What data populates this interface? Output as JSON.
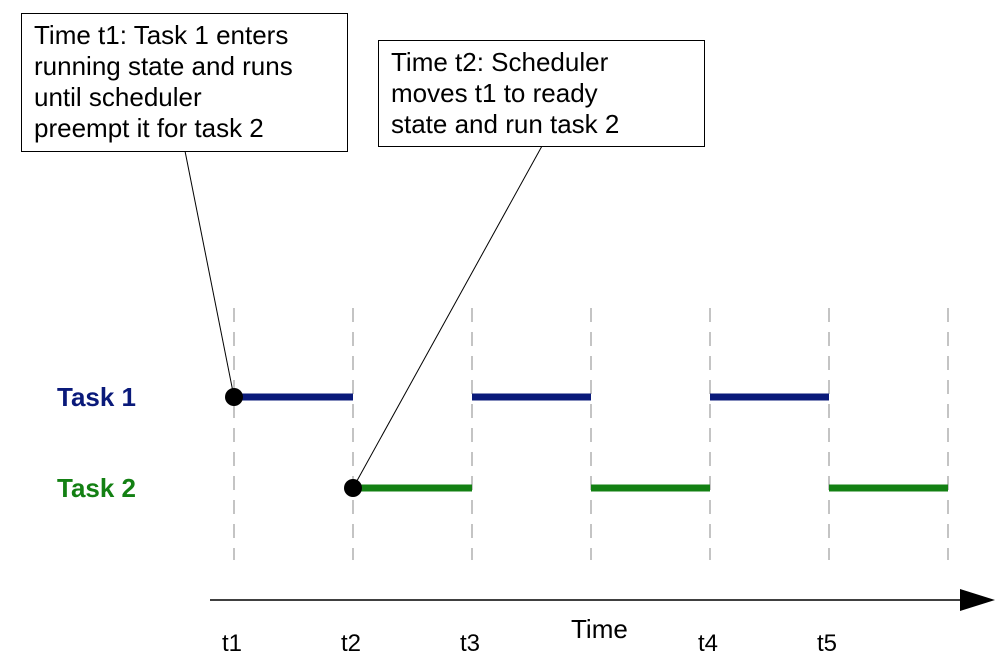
{
  "annotations": [
    {
      "id": "note-t1",
      "text": "Time t1: Task 1 enters\nrunning state and runs\nuntil scheduler\npreempt it for task 2"
    },
    {
      "id": "note-t2",
      "text": "Time t2: Scheduler\nmoves t1 to ready\nstate and run task 2"
    }
  ],
  "tasks": [
    {
      "label": "Task 1",
      "color": "#0a1a7a"
    },
    {
      "label": "Task 2",
      "color": "#138013"
    }
  ],
  "axis": {
    "label": "Time"
  },
  "ticks": [
    "t1",
    "t2",
    "t3",
    "t4",
    "t5"
  ]
}
